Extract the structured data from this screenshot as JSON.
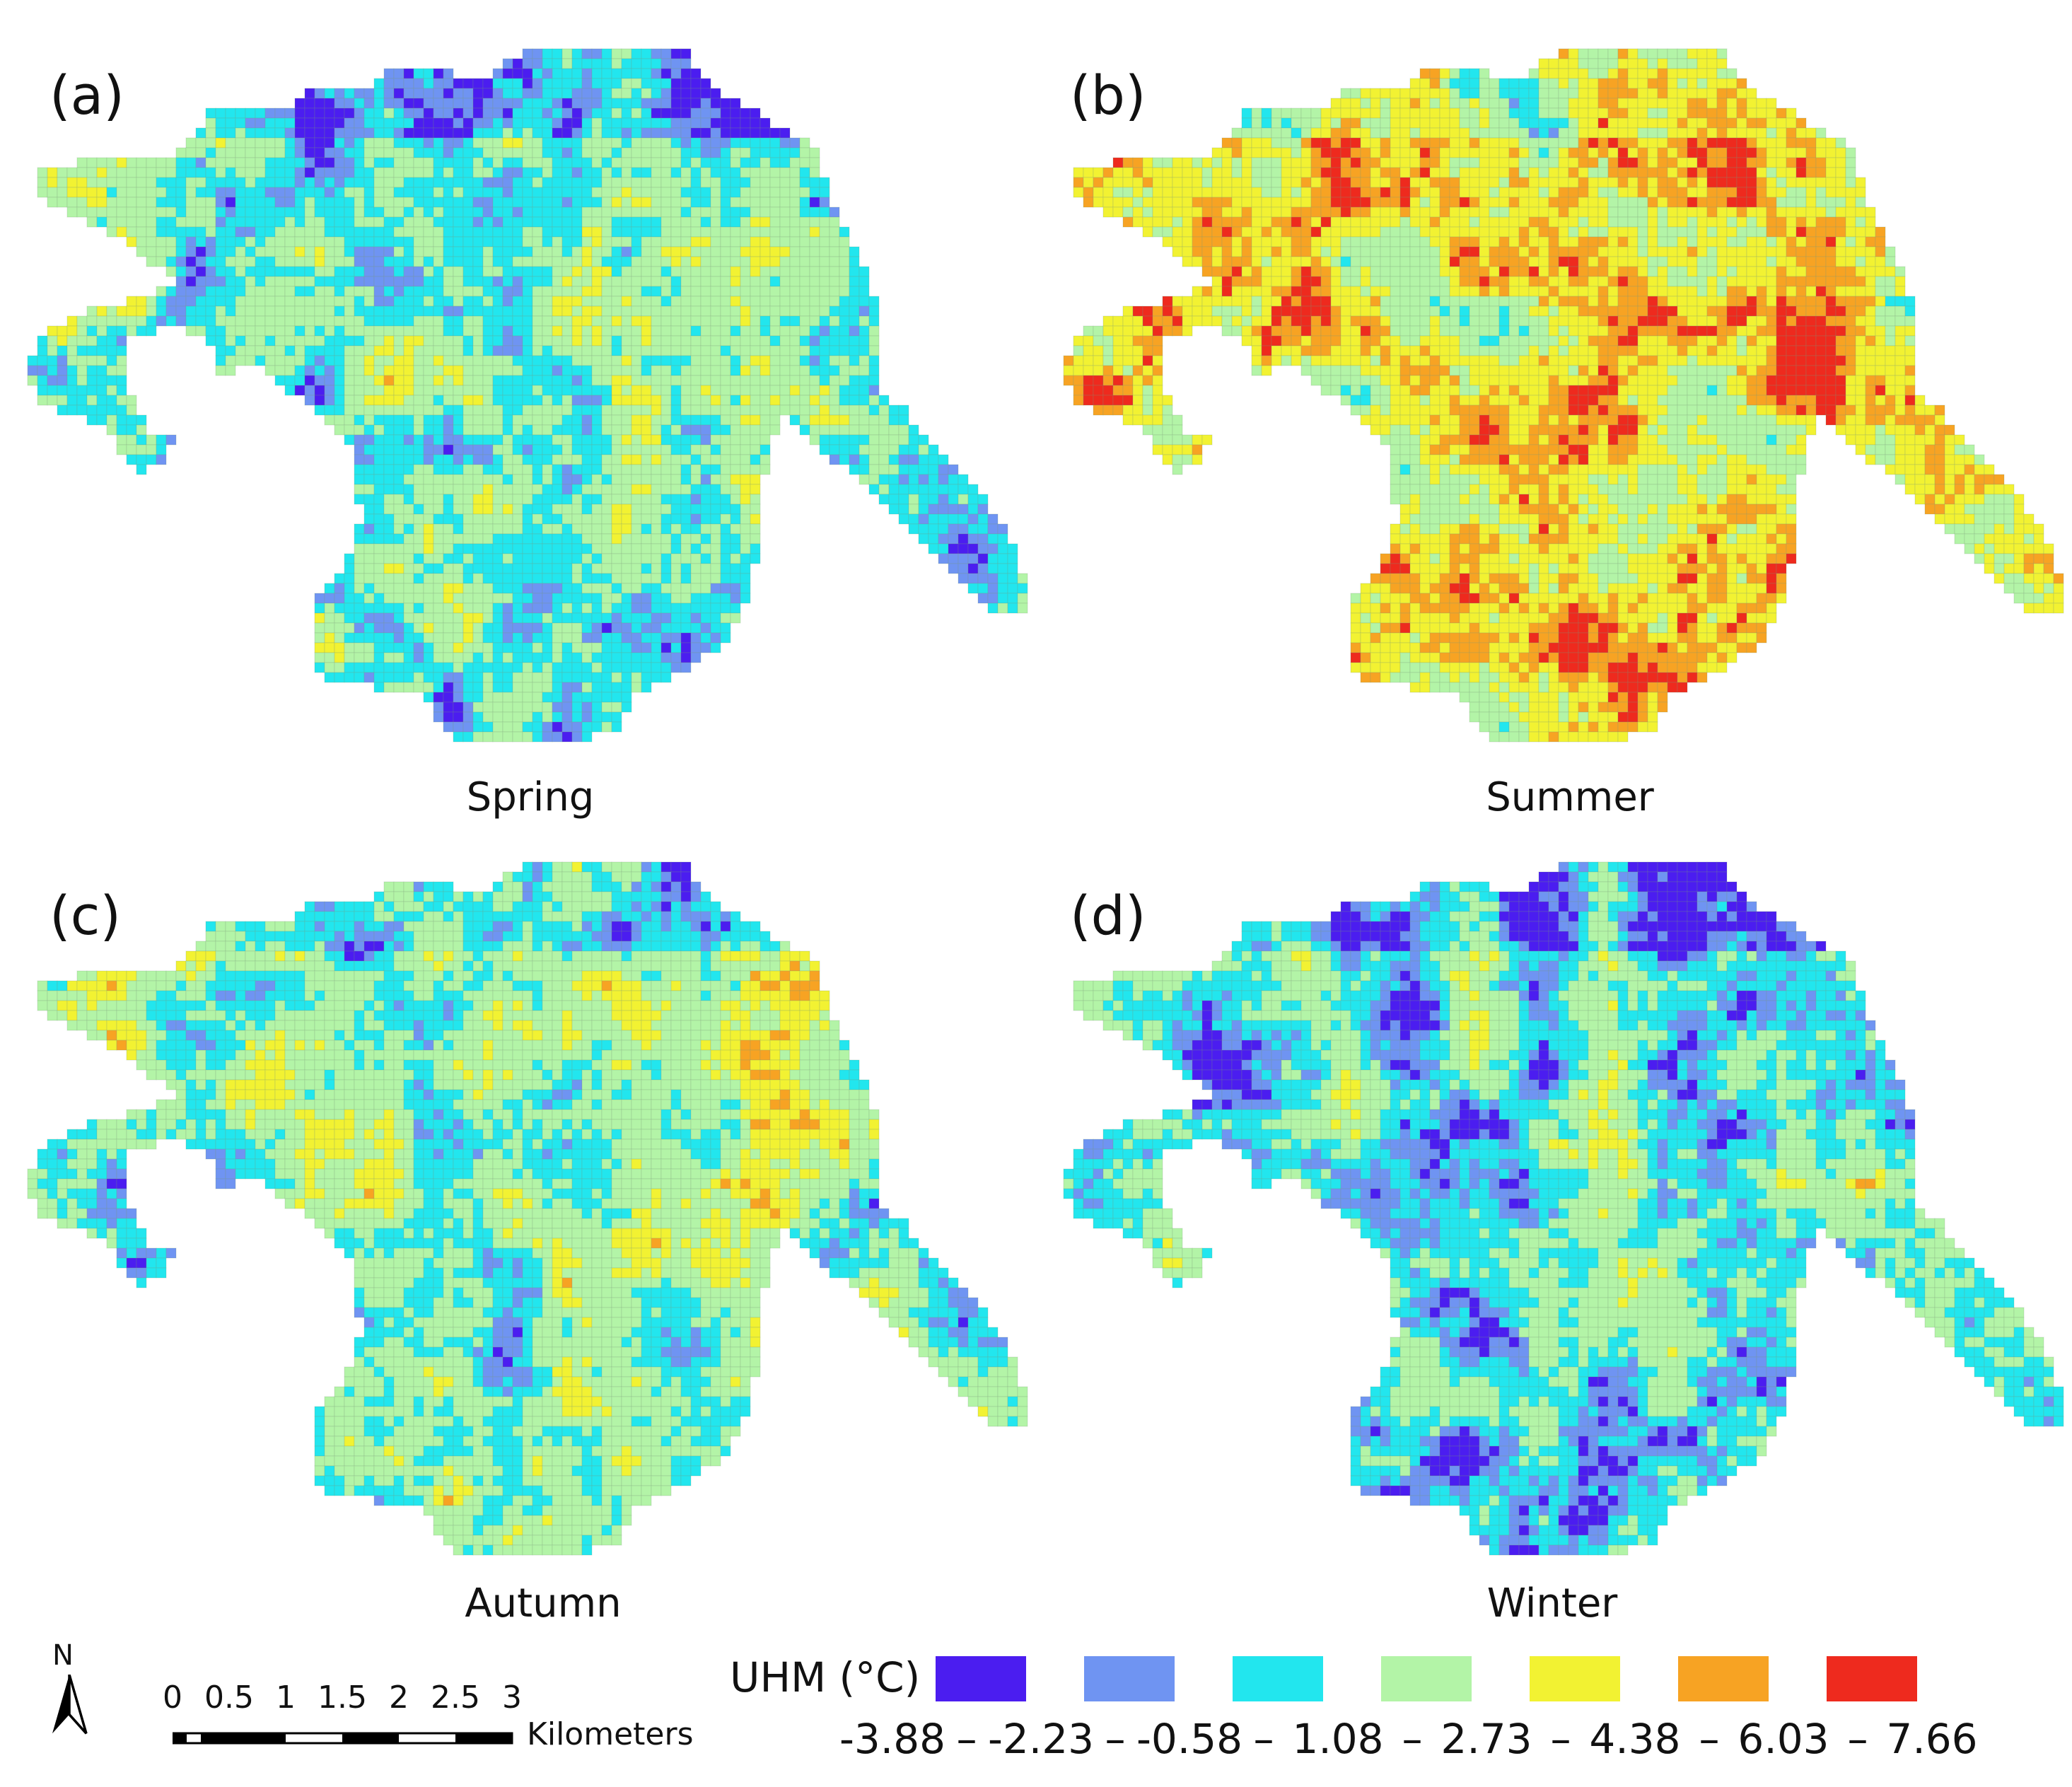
{
  "panels": [
    {
      "letter": "(a)",
      "season": "Spring",
      "heat": 0.05,
      "cool": 0.3
    },
    {
      "letter": "(b)",
      "season": "Summer",
      "heat": 0.55,
      "cool": 0.06
    },
    {
      "letter": "(c)",
      "season": "Autumn",
      "heat": 0.15,
      "cool": 0.22
    },
    {
      "letter": "(d)",
      "season": "Winter",
      "heat": 0.1,
      "cool": 0.45
    }
  ],
  "north_label": "N",
  "scale_bar": {
    "ticks": [
      "0",
      "0.5",
      "1",
      "1.5",
      "2",
      "2.5",
      "3"
    ],
    "unit": "Kilometers"
  },
  "legend": {
    "title": "UHM (°C)",
    "colors": [
      "#4b1df0",
      "#6f94f2",
      "#22e6ee",
      "#b3f4a7",
      "#f2f232",
      "#f7a323",
      "#ee2a1e"
    ],
    "breaks": [
      "-3.88",
      "-2.23",
      "-0.58",
      "1.08",
      "2.73",
      "4.38",
      "6.03",
      "7.66"
    ],
    "dash": "–"
  }
}
